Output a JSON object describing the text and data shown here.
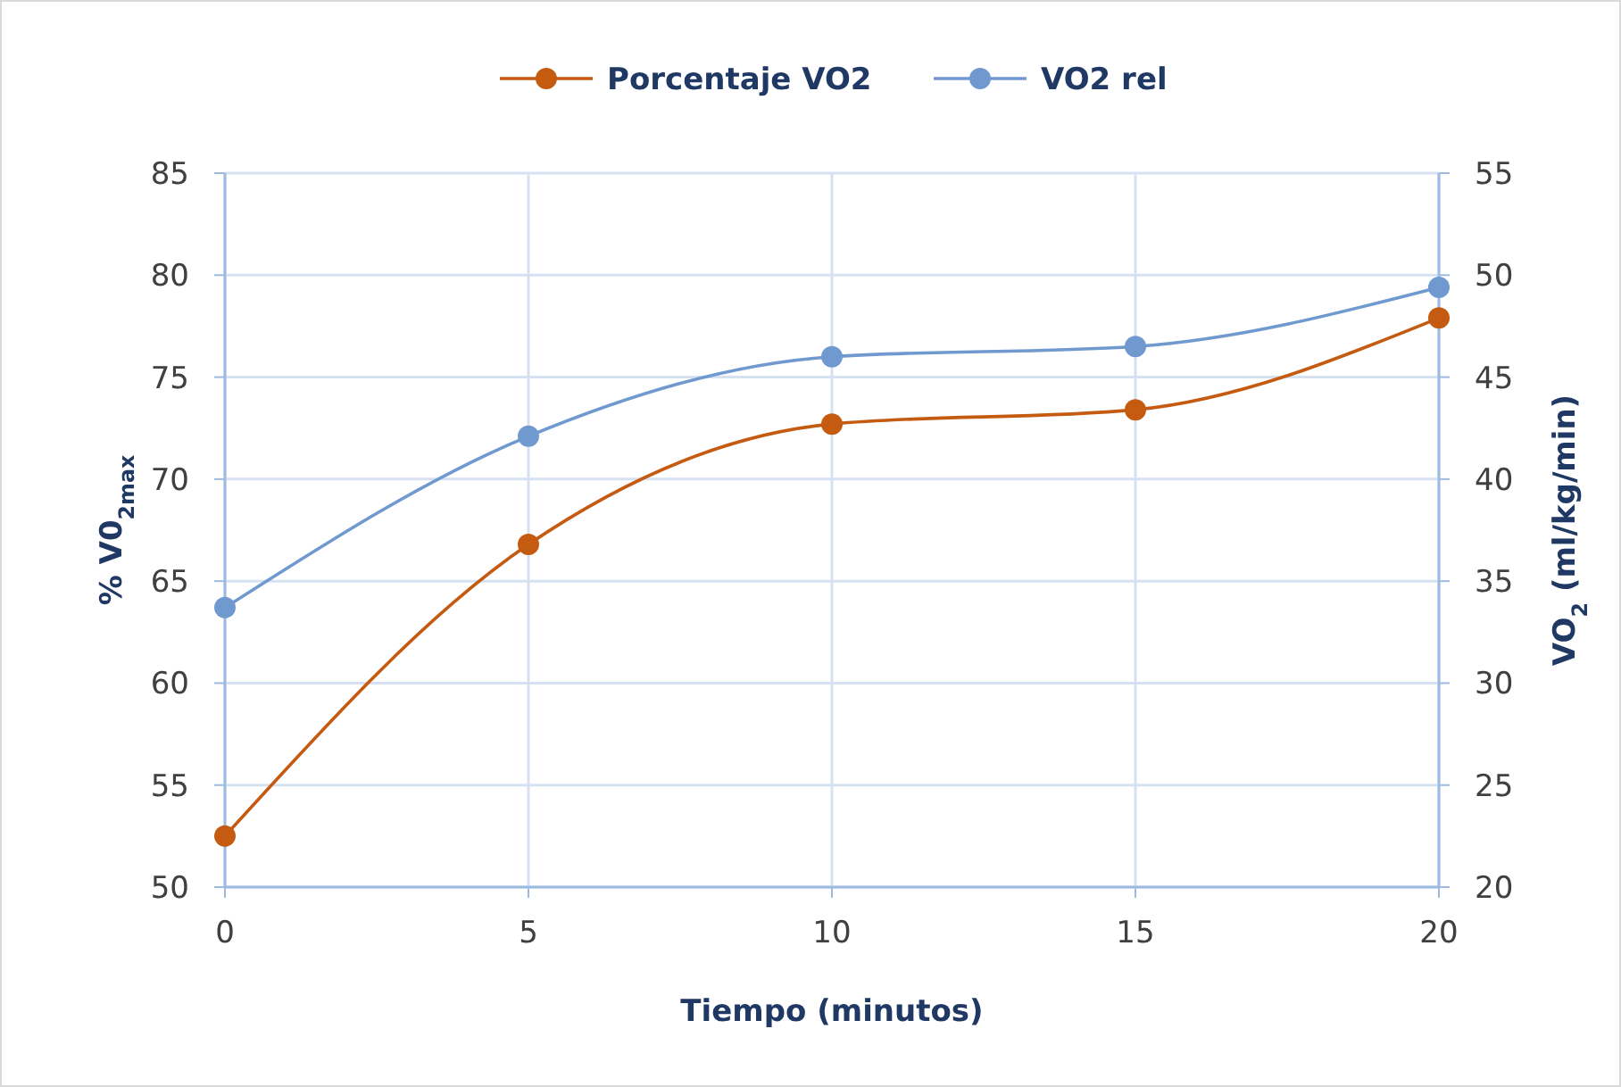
{
  "chart_data": {
    "type": "line",
    "xlabel": "Tiempo (minutos)",
    "ylabel": "% V0$_{2max}$",
    "y2label": "VO$_{2}$ (ml/kg/min)",
    "x": [
      0,
      5,
      10,
      15,
      20
    ],
    "xlim": [
      0,
      20
    ],
    "xticks": [
      0,
      5,
      10,
      15,
      20
    ],
    "ylim": [
      50,
      85
    ],
    "yticks": [
      50,
      55,
      60,
      65,
      70,
      75,
      80,
      85
    ],
    "y2lim": [
      20,
      55
    ],
    "y2ticks": [
      20,
      25,
      30,
      35,
      40,
      45,
      50,
      55
    ],
    "grid": true,
    "legend": "top",
    "marker": "circle",
    "line_style": "solid",
    "series": [
      {
        "name": "Porcentaje VO2",
        "color": "#c55a11",
        "values": [
          52.5,
          66.8,
          72.7,
          73.4,
          77.9
        ]
      },
      {
        "name": "VO2 rel",
        "color": "#7099d0",
        "values": [
          33.7,
          42.1,
          46.0,
          46.5,
          49.4
        ],
        "axis": "y2"
      }
    ]
  }
}
